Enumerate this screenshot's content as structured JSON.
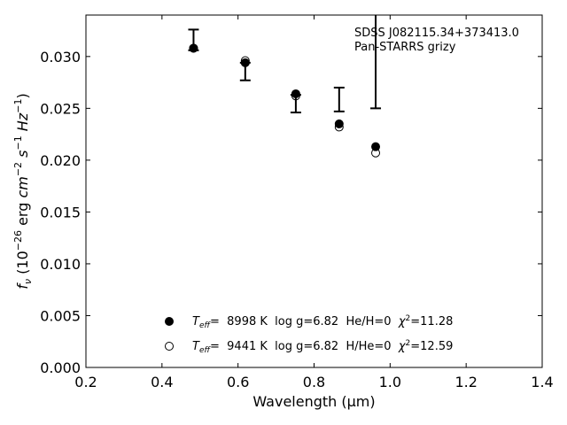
{
  "chart_data": {
    "type": "scatter",
    "xlabel": "Wavelength (μm)",
    "ylabel": "f_ν (10^-26 erg cm^-2 s^-1 Hz^-1)",
    "xlim": [
      0.2,
      1.4
    ],
    "ylim": [
      0.0,
      0.034
    ],
    "xticks": [
      0.2,
      0.4,
      0.6,
      0.8,
      1.0,
      1.2,
      1.4
    ],
    "xtick_labels": [
      "0.2",
      "0.4",
      "0.6",
      "0.8",
      "1.0",
      "1.2",
      "1.4"
    ],
    "yticks": [
      0.0,
      0.005,
      0.01,
      0.015,
      0.02,
      0.025,
      0.03
    ],
    "ytick_labels": [
      "0.000",
      "0.005",
      "0.010",
      "0.015",
      "0.020",
      "0.025",
      "0.030"
    ],
    "grid": false,
    "annotations": [
      "SDSS J082115.34+373413.0",
      "Pan-STARRS grizy"
    ],
    "observed": {
      "x": [
        0.483,
        0.619,
        0.752,
        0.866,
        0.962
      ],
      "y_low": [
        0.0306,
        0.0277,
        0.0246,
        0.0247,
        0.025
      ],
      "y_high": [
        0.0326,
        0.0294,
        0.0263,
        0.027,
        0.034
      ],
      "capped": [
        true,
        true,
        true,
        true,
        false
      ]
    },
    "series": [
      {
        "marker": "filled-circle",
        "legend_label": "T_eff= 8998 K log g=6.82 He/H=0 χ²=11.28",
        "legend_parts": [
          "T",
          "eff",
          "=  8998 K  log g=6.82  He/H=0  ",
          "χ",
          "2",
          "=11.28"
        ],
        "x": [
          0.483,
          0.619,
          0.752,
          0.866,
          0.962
        ],
        "y": [
          0.0308,
          0.0294,
          0.0264,
          0.0235,
          0.0213
        ]
      },
      {
        "marker": "open-circle",
        "legend_label": "T_eff= 9441 K log g=6.82 H/He=0 χ²=12.59",
        "legend_parts": [
          "T",
          "eff",
          "=  9441 K  log g=6.82  H/He=0  ",
          "χ",
          "2",
          "=12.59"
        ],
        "x": [
          0.483,
          0.619,
          0.752,
          0.866,
          0.962
        ],
        "y": [
          0.0308,
          0.0296,
          0.0262,
          0.0232,
          0.0207
        ]
      }
    ],
    "legend_position": "lower-center",
    "colors": {
      "marker": "#000000",
      "background": "#ffffff"
    }
  }
}
